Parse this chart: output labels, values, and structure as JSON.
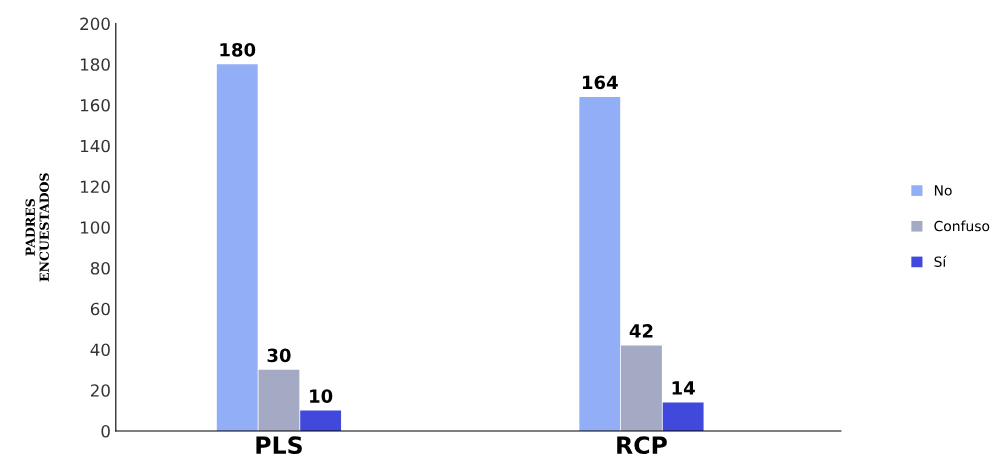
{
  "chart_data": {
    "type": "bar",
    "ylabel": "PADRES\nENCUESTADOS",
    "categories": [
      "PLS",
      "RCP"
    ],
    "series": [
      {
        "name": "No",
        "color": "#92aef7",
        "values": [
          180,
          164
        ]
      },
      {
        "name": "Confuso",
        "color": "#a4a9c4",
        "values": [
          30,
          42
        ]
      },
      {
        "name": "Sí",
        "color": "#4049db",
        "values": [
          10,
          14
        ]
      }
    ],
    "ylim": [
      0,
      200
    ],
    "yticks": [
      0,
      20,
      40,
      60,
      80,
      100,
      120,
      140,
      160,
      180,
      200
    ],
    "grid": false,
    "legend": "right",
    "data_labels": true
  }
}
